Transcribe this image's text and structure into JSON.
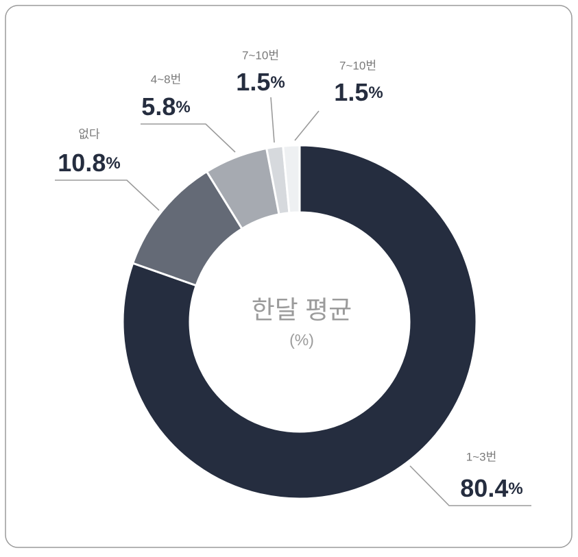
{
  "chart_data": {
    "type": "donut",
    "center_title": "한달 평균",
    "center_subtitle": "(%)",
    "categories": [
      "1~3번",
      "없다",
      "4~8번",
      "7~10번",
      "7~10번"
    ],
    "values": [
      80.4,
      10.8,
      5.8,
      1.5,
      1.5
    ],
    "value_labels": [
      "80.4%",
      "10.8%",
      "5.8%",
      "1.5%",
      "1.5%"
    ],
    "colors": [
      "#252d3f",
      "#646a76",
      "#a6aab1",
      "#d6d9dd",
      "#eef0f2"
    ]
  }
}
